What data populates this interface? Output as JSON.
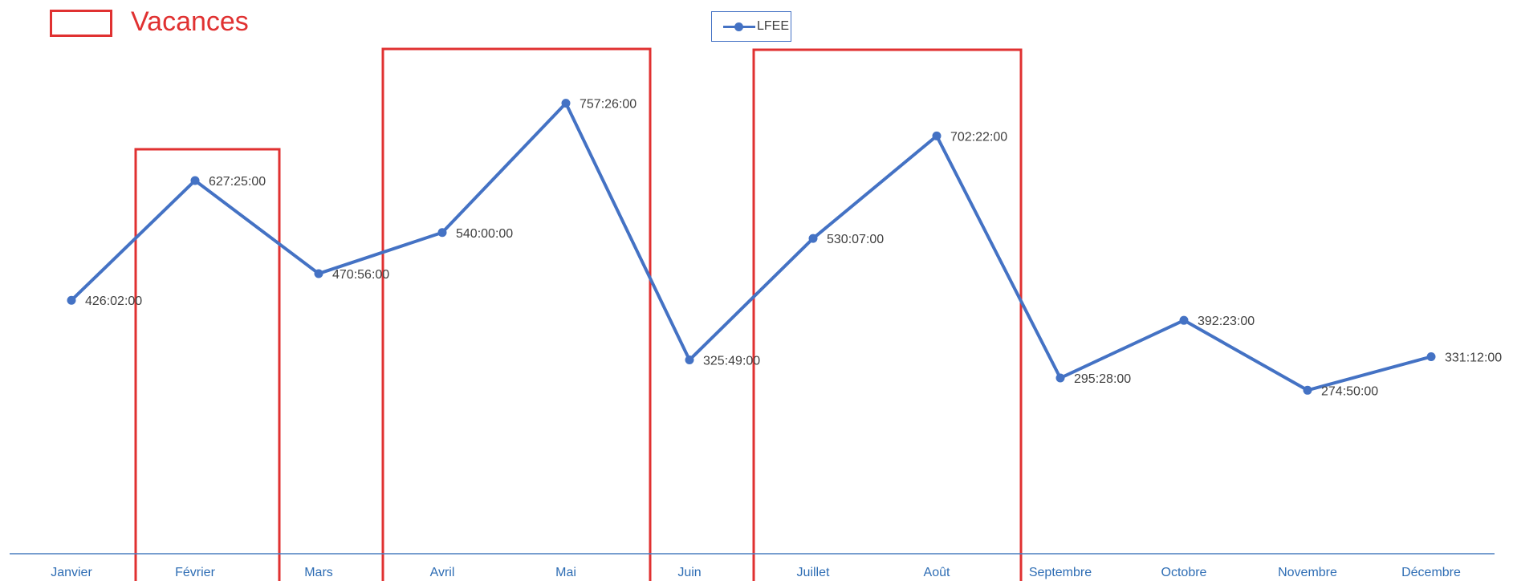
{
  "colors": {
    "series": "#4472c4",
    "axis": "#4a7ebf",
    "category": "#2e6db4",
    "label": "#404040",
    "highlight": "#e03131"
  },
  "highlight_legend": {
    "label": "Vacances"
  },
  "chart_data": {
    "type": "line",
    "categories": [
      "Janvier",
      "Février",
      "Mars",
      "Avril",
      "Mai",
      "Juin",
      "Juillet",
      "Août",
      "Septembre",
      "Octobre",
      "Novembre",
      "Décembre"
    ],
    "series": [
      {
        "name": "LFEE",
        "values": [
          426.0333,
          627.4167,
          470.9333,
          540.0,
          757.4333,
          325.8167,
          530.1167,
          702.3667,
          295.4667,
          392.3833,
          274.8333,
          331.2
        ],
        "labels": [
          "426:02:00",
          "627:25:00",
          "470:56:00",
          "540:00:00",
          "757:26:00",
          "325:49:00",
          "530:07:00",
          "702:22:00",
          "295:28:00",
          "392:23:00",
          "274:50:00",
          "331:12:00"
        ]
      }
    ],
    "highlight_ranges": [
      {
        "from": "Février",
        "to": "Février"
      },
      {
        "from": "Avril",
        "to": "Mai"
      },
      {
        "from": "Juillet",
        "to": "Août"
      }
    ],
    "legend_position": "top-center",
    "ylim": [
      0,
      850
    ],
    "grid": false
  }
}
